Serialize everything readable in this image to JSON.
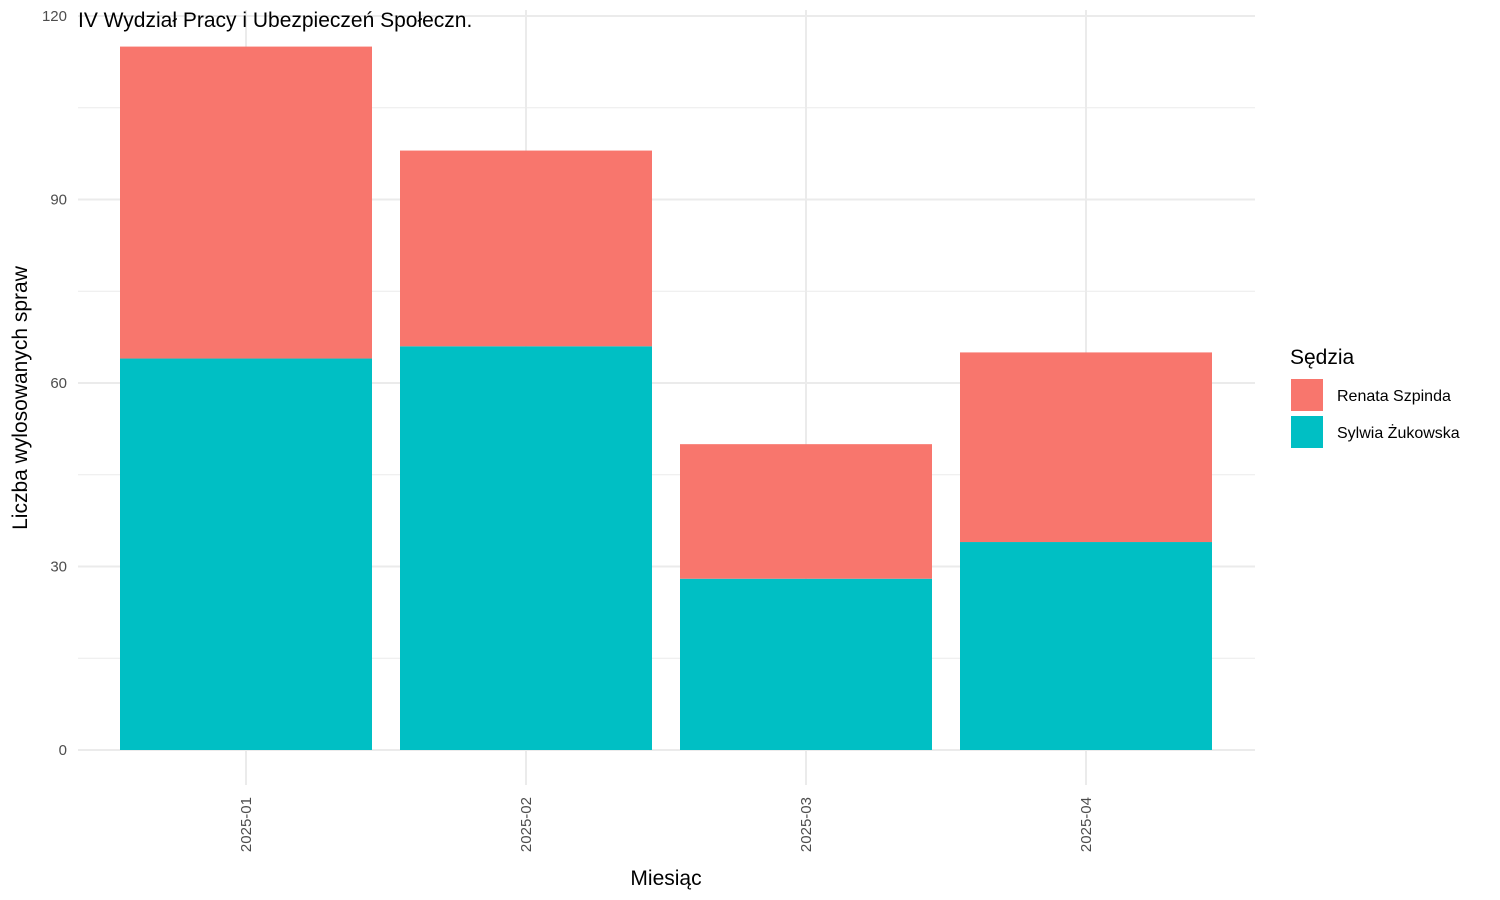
{
  "chart_data": {
    "type": "bar",
    "stacked": true,
    "title": "IV Wydział Pracy i Ubezpieczeń Społeczn.",
    "xlabel": "Miesiąc",
    "ylabel": "Liczba wylosowanych spraw",
    "categories": [
      "2025-01",
      "2025-02",
      "2025-03",
      "2025-04"
    ],
    "ylim": [
      0,
      120
    ],
    "yticks": [
      0,
      30,
      60,
      90,
      120
    ],
    "grid": true,
    "legend": {
      "title": "Sędzia",
      "position": "right"
    },
    "series": [
      {
        "name": "Sylwia Żukowska",
        "color": "#00BFC4",
        "values": [
          64,
          66,
          28,
          34
        ]
      },
      {
        "name": "Renata Szpinda",
        "color": "#F8766D",
        "values": [
          51,
          32,
          22,
          31
        ]
      }
    ],
    "legend_order": [
      "Renata Szpinda",
      "Sylwia Żukowska"
    ]
  }
}
